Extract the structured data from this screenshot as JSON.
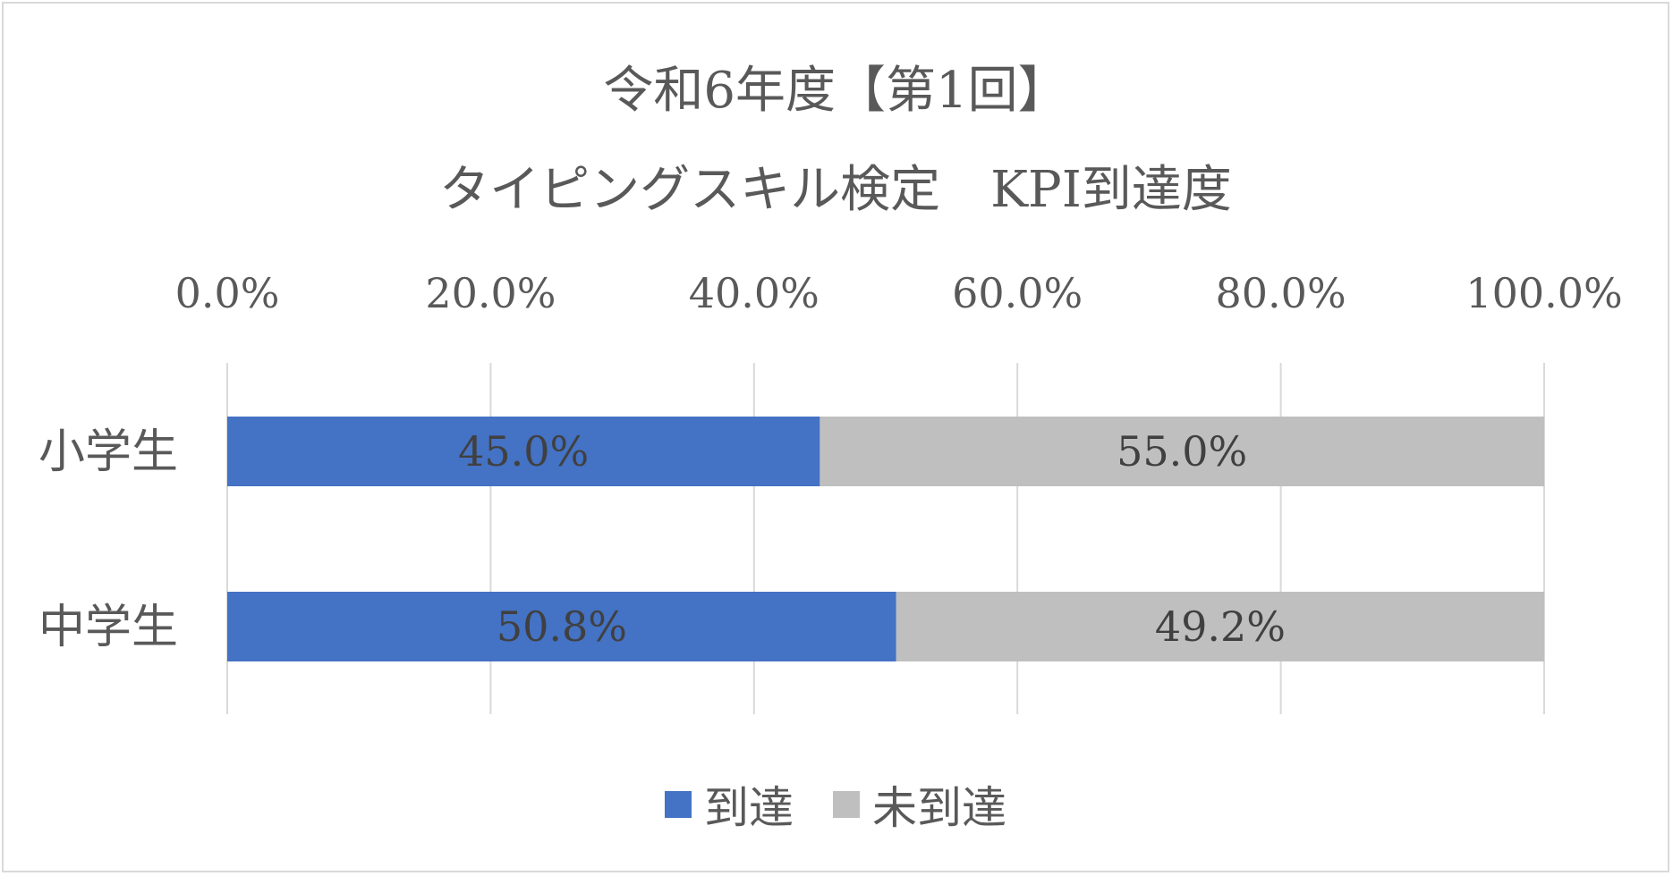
{
  "chart_data": {
    "type": "bar",
    "orientation": "horizontal",
    "stacked": "percent",
    "title": [
      "令和6年度【第1回】",
      "タイピングスキル検定　KPI到達度"
    ],
    "categories": [
      "小学生",
      "中学生"
    ],
    "series": [
      {
        "name": "到達",
        "values": [
          45.0,
          50.8
        ],
        "labels": [
          "45.0%",
          "50.8%"
        ],
        "color": "#4472c4"
      },
      {
        "name": "未到達",
        "values": [
          55.0,
          49.2
        ],
        "labels": [
          "55.0%",
          "49.2%"
        ],
        "color": "#bfbfbf"
      }
    ],
    "xlim": [
      0,
      100
    ],
    "x_ticks": [
      0,
      20,
      40,
      60,
      80,
      100
    ],
    "x_tick_labels": [
      "0.0%",
      "20.0%",
      "40.0%",
      "60.0%",
      "80.0%",
      "100.0%"
    ],
    "x_axis_position": "top",
    "grid": true,
    "legend": "bottom",
    "gridline_color": "#d9d9d9"
  }
}
